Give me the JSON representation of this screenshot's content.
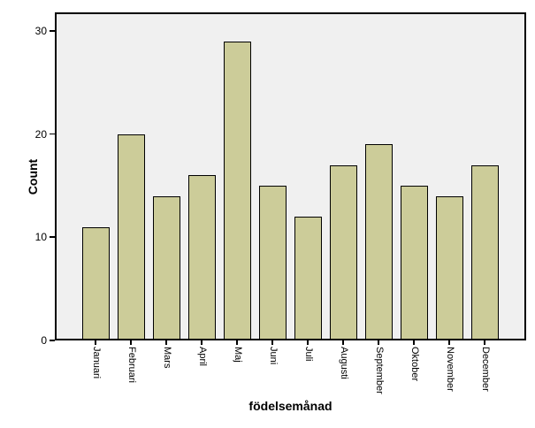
{
  "chart_data": {
    "type": "bar",
    "xlabel": "födelsemånad",
    "ylabel": "Count",
    "categories": [
      "Januari",
      "Februari",
      "Mars",
      "April",
      "Maj",
      "Juni",
      "Juli",
      "Augusti",
      "September",
      "Oktober",
      "November",
      "December"
    ],
    "values": [
      11,
      20,
      14,
      16,
      29,
      15,
      12,
      17,
      19,
      15,
      14,
      17
    ],
    "yticks": [
      0,
      10,
      20,
      30
    ],
    "ylim": [
      0,
      31.8
    ],
    "grid": false,
    "legend": "none",
    "bar_color": "#CCCC99",
    "bar_border_color": "#000000",
    "plot_background": "#F0F0F0",
    "frame_color": "#000000",
    "text_color": "#000000"
  }
}
